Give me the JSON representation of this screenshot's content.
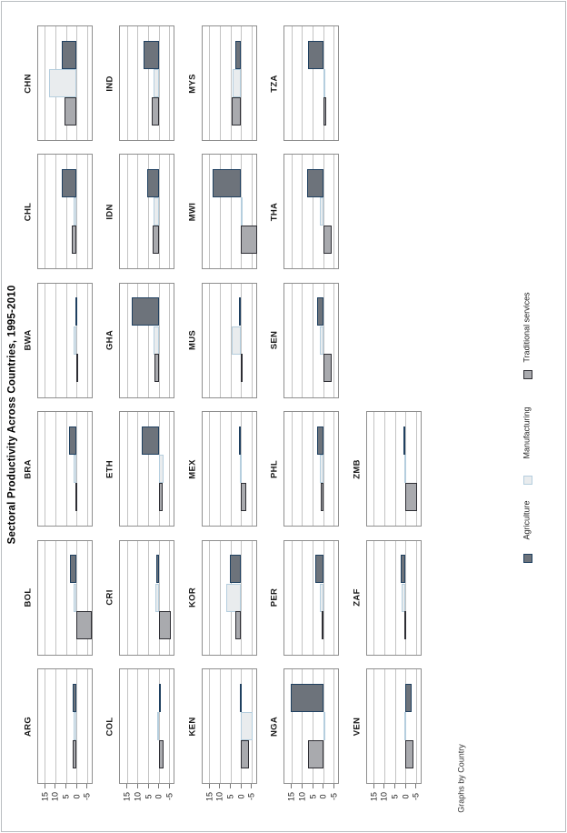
{
  "title": "Sectoral Productivity Across Countries, 1995-2010",
  "note": "Graphs by Country",
  "legend": {
    "items": [
      {
        "label": "Agriculture",
        "color": "#6d737b",
        "outline": "#1f4060"
      },
      {
        "label": "Manufacturing",
        "color": "#e9ecee",
        "outline": "#b5cede"
      },
      {
        "label": "Traditional services",
        "color": "#a9aaae",
        "outline": "#2e2e34"
      }
    ]
  },
  "chart_data": {
    "type": "bar",
    "orientation": "rotated-90-ccw",
    "title": "Sectoral Productivity Across Countries, 1995-2010",
    "series_names": [
      "Agriculture",
      "Manufacturing",
      "Traditional services"
    ],
    "axis": {
      "tick_labels": [
        "15",
        "10",
        "5",
        "0",
        "-5"
      ],
      "tick_values": [
        15,
        10,
        5,
        0,
        -5
      ],
      "range": [
        -7.5,
        18.7
      ],
      "grid": true
    },
    "panels": [
      {
        "code": "CHN",
        "row": 0,
        "col": 0,
        "values": [
          6.9,
          12.9,
          5.8
        ]
      },
      {
        "code": "IND",
        "row": 0,
        "col": 1,
        "values": [
          7.3,
          2.7,
          3.5
        ]
      },
      {
        "code": "MYS",
        "row": 0,
        "col": 2,
        "values": [
          2.9,
          4.0,
          4.6
        ]
      },
      {
        "code": "TZA",
        "row": 0,
        "col": 3,
        "values": [
          7.1,
          -0.5,
          -1.2
        ]
      },
      {
        "code": "CHL",
        "row": 1,
        "col": 0,
        "values": [
          7.1,
          1.4,
          2.1
        ]
      },
      {
        "code": "IDN",
        "row": 1,
        "col": 1,
        "values": [
          5.3,
          2.7,
          3.1
        ]
      },
      {
        "code": "MWI",
        "row": 1,
        "col": 2,
        "values": [
          13.3,
          -0.5,
          -7.4
        ]
      },
      {
        "code": "THA",
        "row": 1,
        "col": 3,
        "values": [
          7.7,
          1.7,
          -4.0
        ]
      },
      {
        "code": "BWA",
        "row": 2,
        "col": 0,
        "values": [
          0.6,
          1.4,
          -0.5
        ]
      },
      {
        "code": "GHA",
        "row": 2,
        "col": 1,
        "values": [
          12.9,
          2.3,
          1.9
        ]
      },
      {
        "code": "MUS",
        "row": 2,
        "col": 2,
        "values": [
          1.0,
          4.3,
          -0.2
        ]
      },
      {
        "code": "SEN",
        "row": 2,
        "col": 3,
        "values": [
          2.9,
          1.7,
          -4.0
        ]
      },
      {
        "code": "BRA",
        "row": 3,
        "col": 0,
        "values": [
          3.6,
          1.3,
          0.3
        ]
      },
      {
        "code": "ETH",
        "row": 3,
        "col": 1,
        "values": [
          8.0,
          -2.3,
          -1.6
        ]
      },
      {
        "code": "MEX",
        "row": 3,
        "col": 2,
        "values": [
          0.9,
          0.4,
          -2.3
        ]
      },
      {
        "code": "PHL",
        "row": 3,
        "col": 3,
        "values": [
          2.9,
          1.6,
          1.1
        ]
      },
      {
        "code": "ZMB",
        "row": 3,
        "col": 4,
        "values": [
          1.0,
          0.5,
          -5.4
        ]
      },
      {
        "code": "BOL",
        "row": 4,
        "col": 0,
        "values": [
          3.3,
          1.4,
          -7.1
        ]
      },
      {
        "code": "CRI",
        "row": 4,
        "col": 1,
        "values": [
          1.4,
          1.7,
          -5.6
        ]
      },
      {
        "code": "KOR",
        "row": 4,
        "col": 2,
        "values": [
          5.4,
          7.1,
          2.9
        ]
      },
      {
        "code": "PER",
        "row": 4,
        "col": 3,
        "values": [
          3.6,
          1.7,
          0.7
        ]
      },
      {
        "code": "ZAF",
        "row": 4,
        "col": 4,
        "values": [
          2.1,
          1.9,
          0.5
        ]
      },
      {
        "code": "ARG",
        "row": 5,
        "col": 0,
        "values": [
          1.7,
          1.3,
          1.9
        ]
      },
      {
        "code": "COL",
        "row": 5,
        "col": 1,
        "values": [
          -0.4,
          0.6,
          -2.1
        ]
      },
      {
        "code": "KEN",
        "row": 5,
        "col": 2,
        "values": [
          0.4,
          -5.6,
          -3.7
        ]
      },
      {
        "code": "NGA",
        "row": 5,
        "col": 3,
        "values": [
          15.3,
          -0.3,
          7.4
        ]
      },
      {
        "code": "VEN",
        "row": 5,
        "col": 4,
        "values": [
          -3.0,
          0.5,
          -3.7
        ]
      }
    ]
  }
}
